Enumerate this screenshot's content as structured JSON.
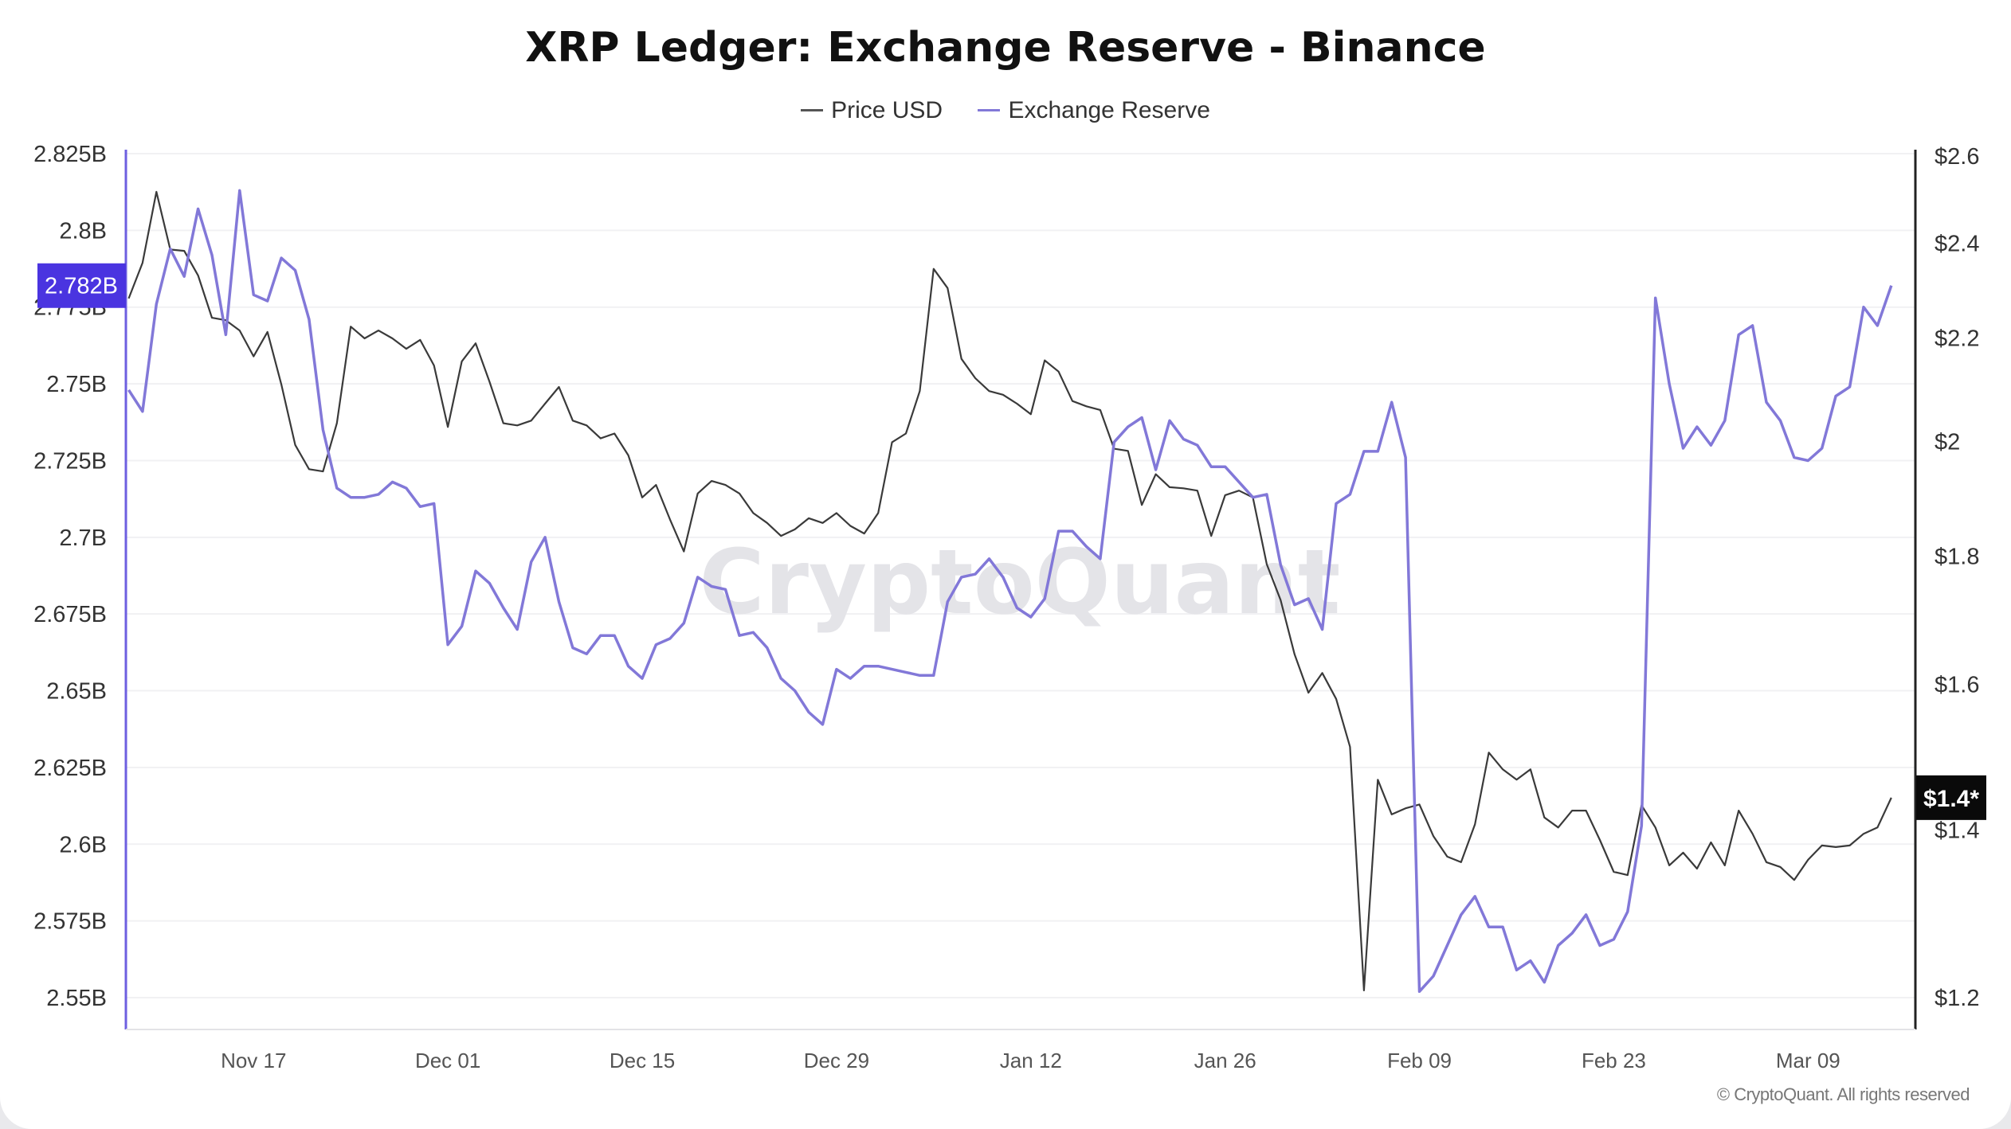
{
  "chart_data": {
    "type": "line",
    "title": "XRP Ledger: Exchange Reserve - Binance",
    "legend": {
      "placement": "top-center"
    },
    "grid": true,
    "watermark": "CryptoQuant",
    "copyright": "© CryptoQuant. All rights reserved",
    "x_tick_labels": [
      "Nov 17",
      "Dec 01",
      "Dec 15",
      "Dec 29",
      "Jan 12",
      "Jan 26",
      "Feb 09",
      "Feb 23",
      "Mar 09"
    ],
    "left_axis": {
      "ylim": [
        2.55,
        2.825
      ],
      "unit": "B",
      "tick_labels": [
        "2.825B",
        "2.8B",
        "2.775B",
        "2.75B",
        "2.725B",
        "2.7B",
        "2.675B",
        "2.65B",
        "2.625B",
        "2.6B",
        "2.575B",
        "2.55B"
      ],
      "ticks": [
        2.825,
        2.8,
        2.775,
        2.75,
        2.725,
        2.7,
        2.675,
        2.65,
        2.625,
        2.6,
        2.575,
        2.55
      ],
      "current_badge": "2.782B",
      "current_value": 2.782
    },
    "right_axis": {
      "scale": "log",
      "ylim": [
        1.2,
        2.6
      ],
      "tick_labels": [
        "$2.6",
        "$2.4",
        "$2.2",
        "$2",
        "$1.8",
        "$1.6",
        "$1.4",
        "$1.2"
      ],
      "ticks": [
        2.6,
        2.4,
        2.2,
        2.0,
        1.8,
        1.6,
        1.4,
        1.2
      ],
      "current_badge": "$1.4*",
      "current_value": 1.442
    },
    "x": [
      "Nov 08",
      "Nov 09",
      "Nov 10",
      "Nov 11",
      "Nov 12",
      "Nov 13",
      "Nov 14",
      "Nov 15",
      "Nov 16",
      "Nov 17",
      "Nov 18",
      "Nov 19",
      "Nov 20",
      "Nov 21",
      "Nov 22",
      "Nov 23",
      "Nov 24",
      "Nov 25",
      "Nov 26",
      "Nov 27",
      "Nov 28",
      "Nov 29",
      "Nov 30",
      "Dec 01",
      "Dec 02",
      "Dec 03",
      "Dec 04",
      "Dec 05",
      "Dec 06",
      "Dec 07",
      "Dec 08",
      "Dec 09",
      "Dec 10",
      "Dec 11",
      "Dec 12",
      "Dec 13",
      "Dec 14",
      "Dec 15",
      "Dec 16",
      "Dec 17",
      "Dec 18",
      "Dec 19",
      "Dec 20",
      "Dec 21",
      "Dec 22",
      "Dec 23",
      "Dec 24",
      "Dec 25",
      "Dec 26",
      "Dec 27",
      "Dec 28",
      "Dec 29",
      "Dec 30",
      "Dec 31",
      "Jan 01",
      "Jan 02",
      "Jan 03",
      "Jan 04",
      "Jan 05",
      "Jan 06",
      "Jan 07",
      "Jan 08",
      "Jan 09",
      "Jan 10",
      "Jan 11",
      "Jan 12",
      "Jan 13",
      "Jan 14",
      "Jan 15",
      "Jan 16",
      "Jan 17",
      "Jan 18",
      "Jan 19",
      "Jan 20",
      "Jan 21",
      "Jan 22",
      "Jan 23",
      "Jan 24",
      "Jan 25",
      "Jan 26",
      "Jan 27",
      "Jan 28",
      "Jan 29",
      "Jan 30",
      "Jan 31",
      "Feb 01",
      "Feb 02",
      "Feb 03",
      "Feb 04",
      "Feb 05",
      "Feb 06",
      "Feb 07",
      "Feb 08",
      "Feb 09",
      "Feb 10",
      "Feb 11",
      "Feb 12",
      "Feb 13",
      "Feb 14",
      "Feb 15",
      "Feb 16",
      "Feb 17",
      "Feb 18",
      "Feb 19",
      "Feb 20",
      "Feb 21",
      "Feb 22",
      "Feb 23",
      "Feb 24",
      "Feb 25",
      "Feb 26",
      "Feb 27",
      "Feb 28",
      "Mar 01",
      "Mar 02",
      "Mar 03",
      "Mar 04",
      "Mar 05",
      "Mar 06",
      "Mar 07",
      "Mar 08",
      "Mar 09",
      "Mar 10",
      "Mar 11",
      "Mar 12",
      "Mar 13",
      "Mar 14",
      "Mar 15"
    ],
    "series": [
      {
        "name": "Price USD",
        "axis": "right",
        "color": "#3a3a3a",
        "values": [
          2.281,
          2.357,
          2.516,
          2.386,
          2.383,
          2.33,
          2.241,
          2.236,
          2.215,
          2.163,
          2.212,
          2.108,
          1.994,
          1.95,
          1.946,
          2.034,
          2.223,
          2.199,
          2.215,
          2.199,
          2.178,
          2.196,
          2.145,
          2.027,
          2.153,
          2.189,
          2.113,
          2.034,
          2.03,
          2.039,
          2.071,
          2.103,
          2.039,
          2.03,
          2.006,
          2.015,
          1.975,
          1.9,
          1.922,
          1.862,
          1.808,
          1.907,
          1.929,
          1.922,
          1.907,
          1.873,
          1.856,
          1.834,
          1.845,
          1.864,
          1.856,
          1.873,
          1.851,
          1.838,
          1.873,
          1.999,
          2.015,
          2.095,
          2.344,
          2.303,
          2.158,
          2.12,
          2.095,
          2.088,
          2.071,
          2.051,
          2.155,
          2.133,
          2.076,
          2.066,
          2.059,
          1.987,
          1.983,
          1.887,
          1.941,
          1.918,
          1.916,
          1.912,
          1.834,
          1.904,
          1.912,
          1.9,
          1.787,
          1.729,
          1.645,
          1.588,
          1.617,
          1.579,
          1.511,
          1.208,
          1.466,
          1.42,
          1.428,
          1.433,
          1.392,
          1.366,
          1.359,
          1.407,
          1.503,
          1.48,
          1.466,
          1.48,
          1.416,
          1.403,
          1.425,
          1.425,
          1.387,
          1.347,
          1.343,
          1.432,
          1.403,
          1.355,
          1.371,
          1.351,
          1.384,
          1.355,
          1.425,
          1.395,
          1.359,
          1.353,
          1.337,
          1.362,
          1.38,
          1.378,
          1.38,
          1.395,
          1.403,
          1.442
        ]
      },
      {
        "name": "Exchange Reserve",
        "axis": "left",
        "color": "#8278d8",
        "values": [
          2.748,
          2.741,
          2.776,
          2.794,
          2.785,
          2.807,
          2.792,
          2.766,
          2.813,
          2.779,
          2.777,
          2.791,
          2.787,
          2.771,
          2.735,
          2.716,
          2.713,
          2.713,
          2.714,
          2.718,
          2.716,
          2.71,
          2.711,
          2.665,
          2.671,
          2.689,
          2.685,
          2.677,
          2.67,
          2.692,
          2.7,
          2.679,
          2.664,
          2.662,
          2.668,
          2.668,
          2.658,
          2.654,
          2.665,
          2.667,
          2.672,
          2.687,
          2.684,
          2.683,
          2.668,
          2.669,
          2.664,
          2.654,
          2.65,
          2.643,
          2.639,
          2.657,
          2.654,
          2.658,
          2.658,
          2.657,
          2.656,
          2.655,
          2.655,
          2.679,
          2.687,
          2.688,
          2.693,
          2.687,
          2.677,
          2.674,
          2.68,
          2.702,
          2.702,
          2.697,
          2.693,
          2.731,
          2.736,
          2.739,
          2.722,
          2.738,
          2.732,
          2.73,
          2.723,
          2.723,
          2.718,
          2.713,
          2.714,
          2.691,
          2.678,
          2.68,
          2.67,
          2.711,
          2.714,
          2.728,
          2.728,
          2.744,
          2.726,
          2.552,
          2.557,
          2.567,
          2.577,
          2.583,
          2.573,
          2.573,
          2.559,
          2.562,
          2.555,
          2.567,
          2.571,
          2.577,
          2.567,
          2.569,
          2.578,
          2.606,
          2.778,
          2.75,
          2.729,
          2.736,
          2.73,
          2.738,
          2.766,
          2.769,
          2.744,
          2.738,
          2.726,
          2.725,
          2.729,
          2.746,
          2.749,
          2.775,
          2.769,
          2.782
        ]
      }
    ]
  }
}
